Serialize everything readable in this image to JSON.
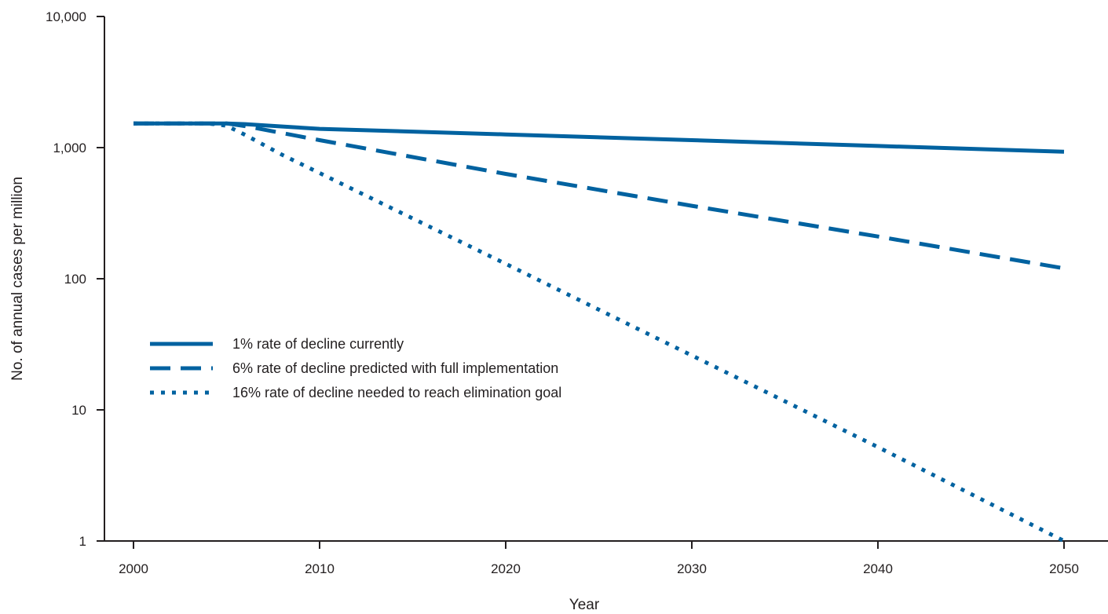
{
  "chart_data": {
    "type": "line",
    "title": "",
    "xlabel": "Year",
    "ylabel": "No. of annual cases per million",
    "xlim": [
      1998,
      2052
    ],
    "ylim": [
      1,
      10000
    ],
    "y_scale": "log",
    "x_ticks": [
      2000,
      2010,
      2020,
      2030,
      2040,
      2050
    ],
    "x_tick_labels": [
      "2000",
      "2010",
      "2020",
      "2030",
      "2040",
      "2050"
    ],
    "y_ticks": [
      1,
      10,
      100,
      1000,
      10000
    ],
    "y_tick_labels": [
      "1",
      "10",
      "100",
      "1,000",
      "10,000"
    ],
    "grid": false,
    "legend_position": "left",
    "line_color": "#0062a0",
    "series": [
      {
        "name": "1% rate of decline currently",
        "style": "solid",
        "x": [
          2000,
          2005,
          2006,
          2008,
          2010,
          2020,
          2030,
          2040,
          2050
        ],
        "y": [
          1530,
          1530,
          1510,
          1450,
          1390,
          1260,
          1140,
          1030,
          930
        ]
      },
      {
        "name": "6% rate of decline predicted with full implementation",
        "style": "dashed",
        "x": [
          2000,
          2005,
          2006,
          2008,
          2010,
          2020,
          2030,
          2040,
          2050
        ],
        "y": [
          1530,
          1530,
          1460,
          1290,
          1140,
          630,
          360,
          210,
          120
        ]
      },
      {
        "name": "16% rate of decline needed to reach elimination goal",
        "style": "dotted",
        "x": [
          2000,
          2004,
          2005,
          2006,
          2008,
          2010,
          2020,
          2030,
          2040,
          2050
        ],
        "y": [
          1530,
          1530,
          1470,
          1250,
          880,
          640,
          130,
          26,
          5.2,
          1
        ]
      }
    ]
  }
}
